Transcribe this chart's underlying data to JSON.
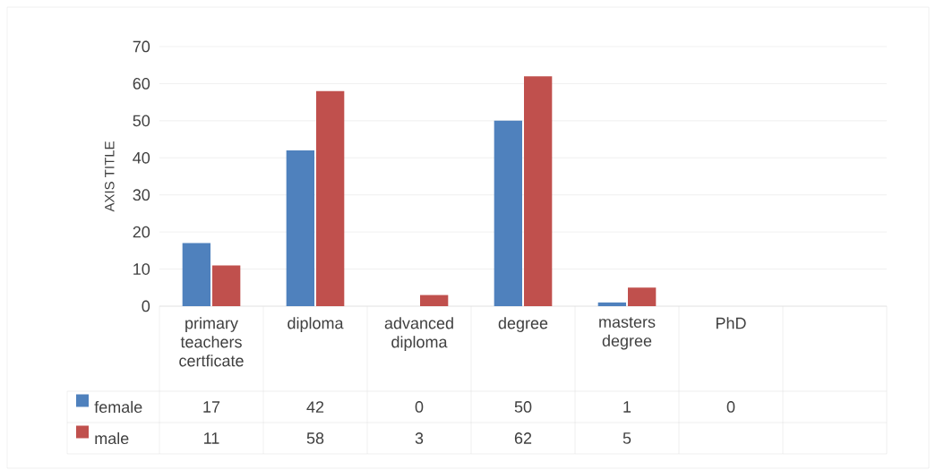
{
  "chart_data": {
    "type": "bar",
    "ylabel": "AXIS TITLE",
    "categories": [
      "primary teachers certficate",
      "diploma",
      "advanced diploma",
      "degree",
      "masters degree",
      "PhD",
      null
    ],
    "series": [
      {
        "name": "female",
        "color": "#4f81bd",
        "values": [
          17,
          42,
          0,
          50,
          1,
          0,
          null
        ]
      },
      {
        "name": "male",
        "color": "#c0504d",
        "values": [
          11,
          58,
          3,
          62,
          5,
          null,
          null
        ]
      }
    ],
    "ylim": [
      0,
      70
    ],
    "yticks": [
      0,
      10,
      20,
      30,
      40,
      50,
      60,
      70
    ],
    "grid": "y",
    "legend": "bottom",
    "data_labels": true
  }
}
